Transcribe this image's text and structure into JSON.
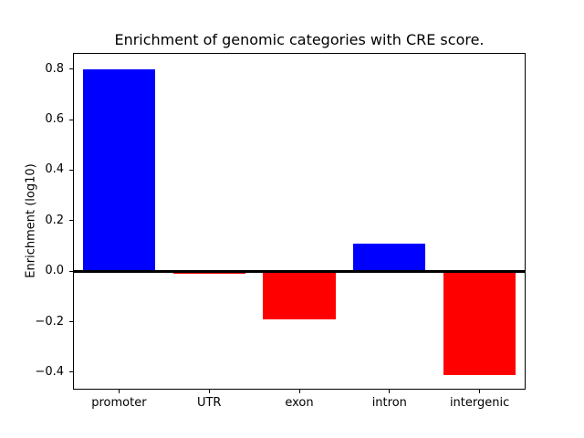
{
  "figure": {
    "background": "#ffffff"
  },
  "chart_data": {
    "type": "bar",
    "title": "Enrichment of genomic categories with CRE score.",
    "ylabel": "Enrichment (log10)",
    "xlabel": "",
    "categories": [
      "promoter",
      "UTR",
      "exon",
      "intron",
      "intergenic"
    ],
    "values": [
      0.8,
      -0.01,
      -0.19,
      0.11,
      -0.41
    ],
    "bar_colors": [
      "#0000ff",
      "#ff0000",
      "#ff0000",
      "#0000ff",
      "#ff0000"
    ],
    "positive_color": "#0000ff",
    "negative_color": "#ff0000",
    "yticks": [
      0.8,
      0.6,
      0.4,
      0.2,
      0.0,
      -0.2,
      -0.4
    ],
    "ytick_labels": [
      "0.8",
      "0.6",
      "0.4",
      "0.2",
      "0.0",
      "−0.2",
      "−0.4"
    ],
    "ylim": [
      -0.465,
      0.86
    ],
    "xlim": [
      -0.5,
      4.5
    ],
    "bar_width_fraction": 0.8,
    "zero_line": true,
    "grid": false,
    "legend": false,
    "axis_color": "#000000",
    "background_color": "#ffffff"
  }
}
